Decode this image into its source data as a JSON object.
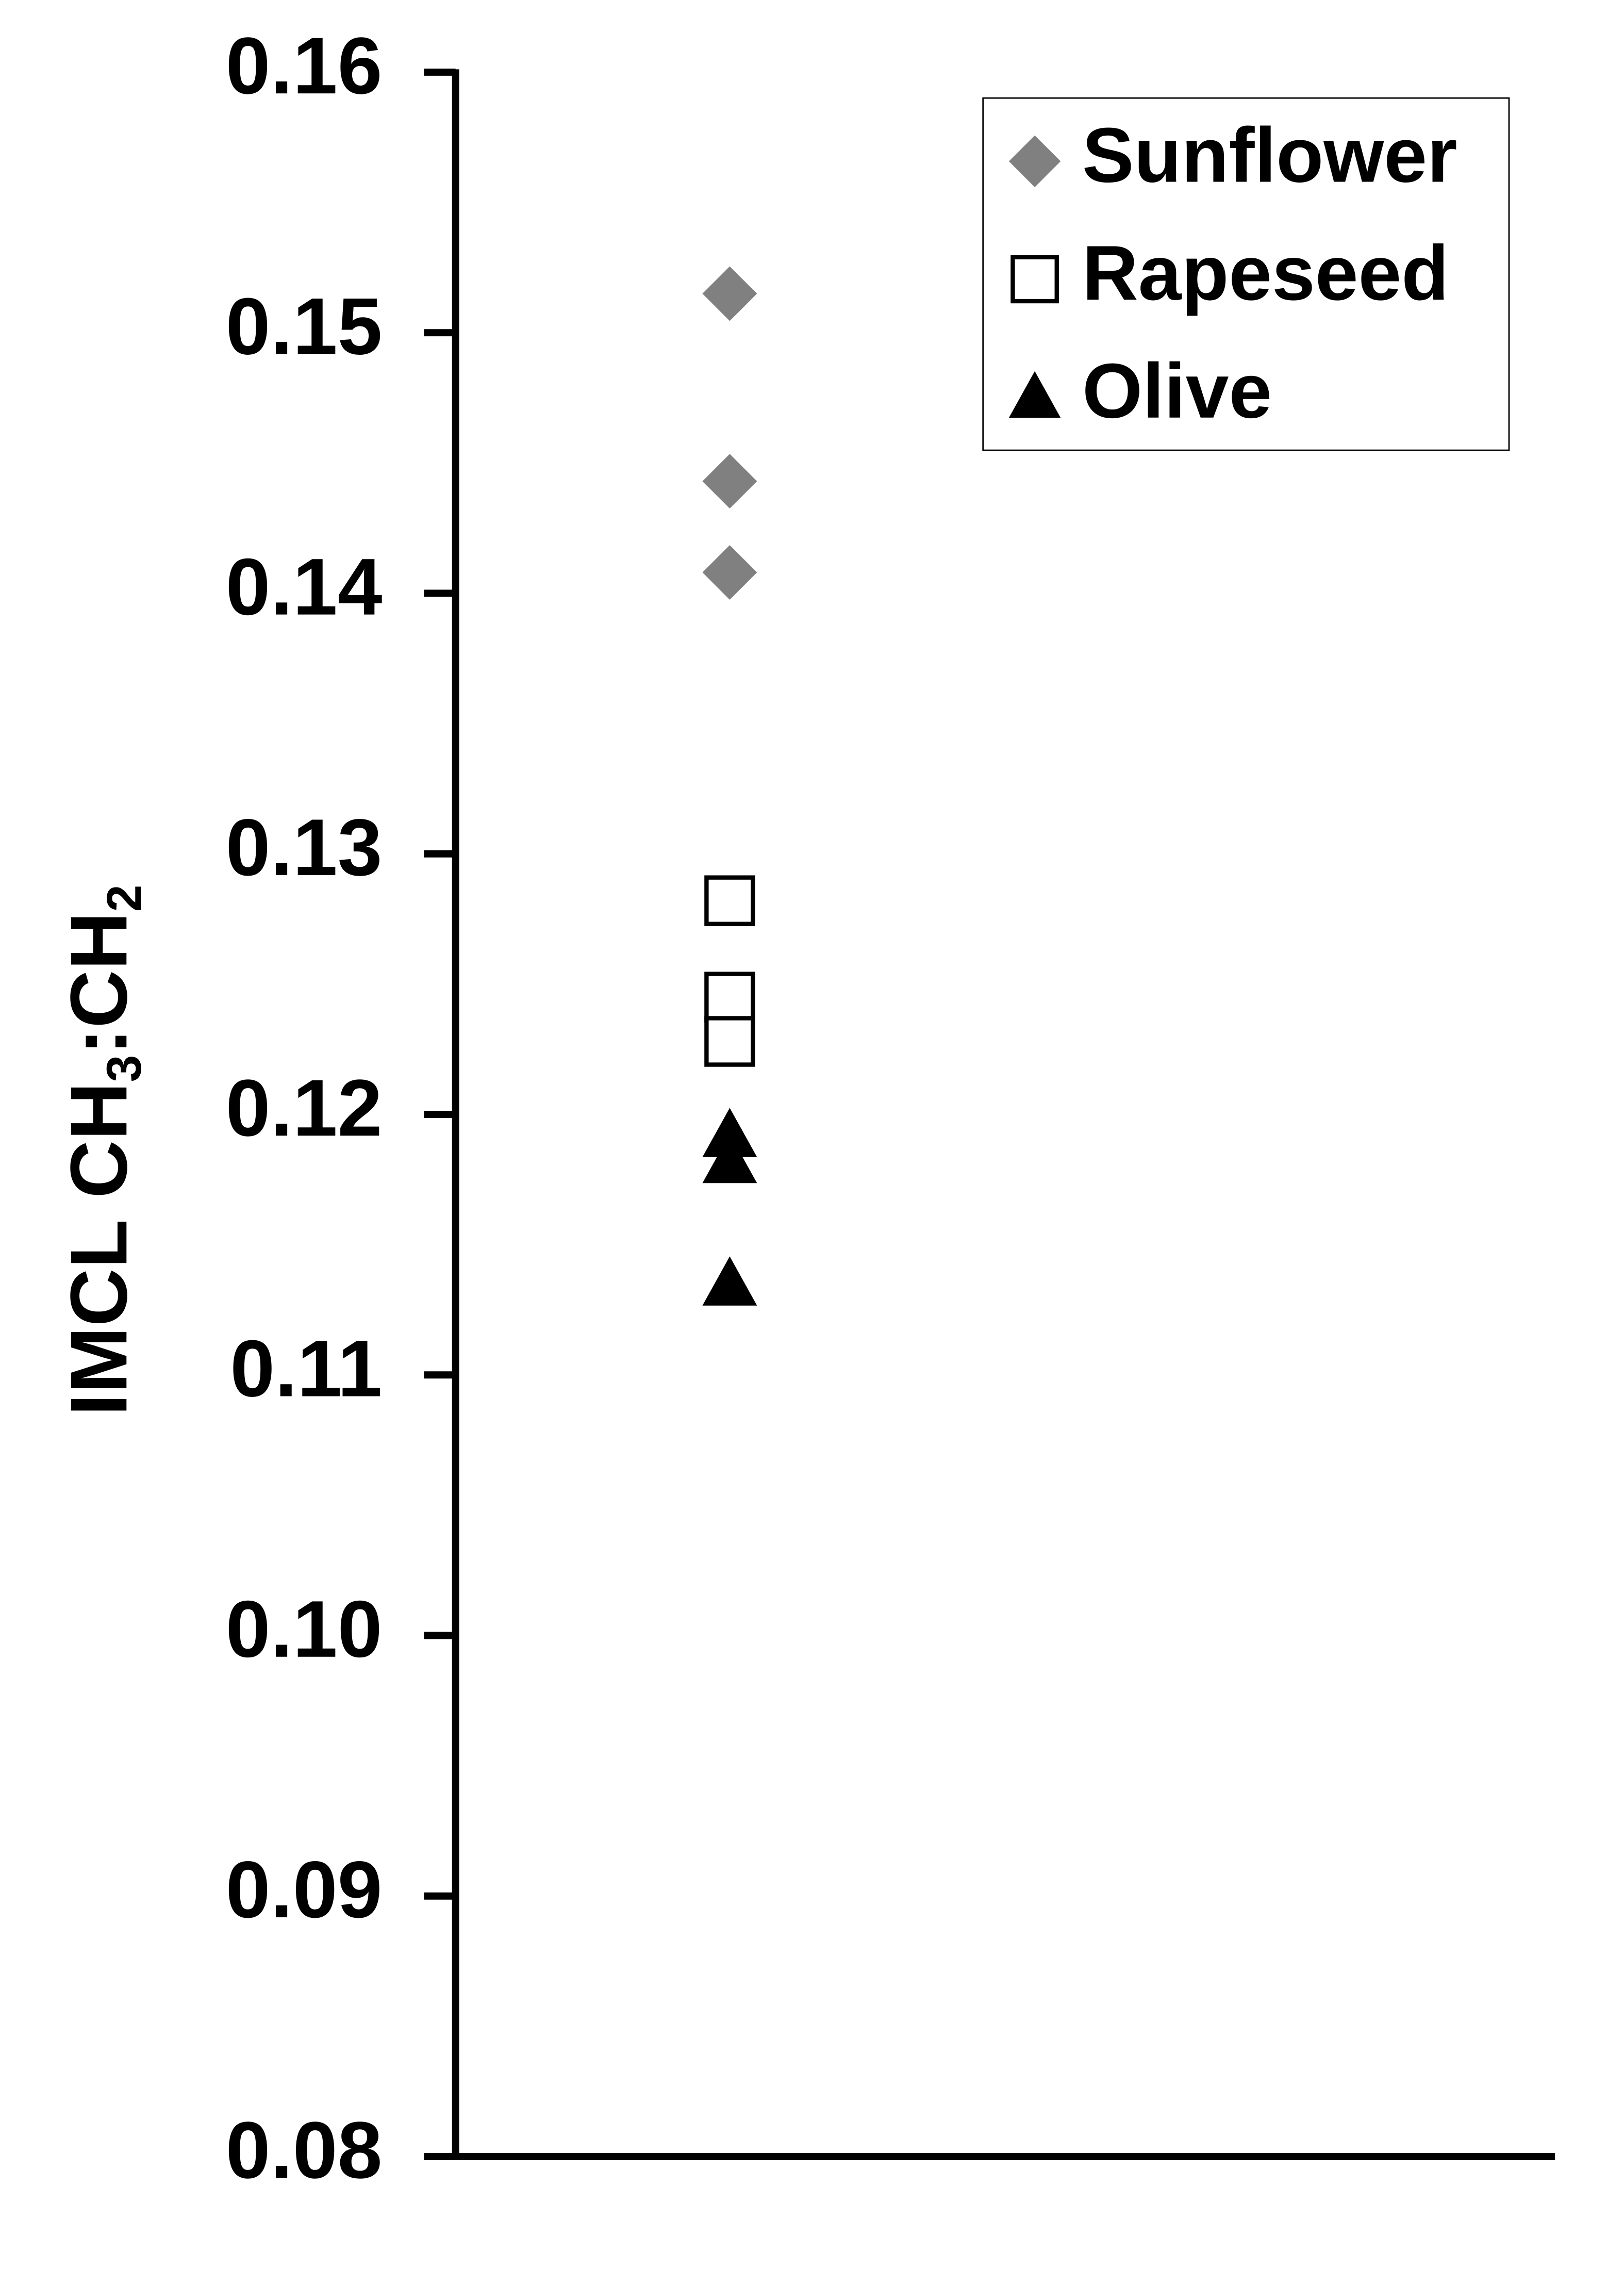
{
  "chart_data": {
    "type": "strip",
    "ylabel": [
      "IMCL CH",
      "3",
      ":CH",
      "2"
    ],
    "ylim": [
      0.08,
      0.16
    ],
    "yticks": [
      0.08,
      0.09,
      {
        "value": 0.1,
        "label": "0.10"
      },
      0.11,
      0.12,
      0.13,
      0.14,
      0.15,
      0.16
    ],
    "legend": "upper right",
    "series": [
      {
        "name": "Sunflower",
        "marker": "diamond",
        "color": "#808080",
        "values": [
          0.1515,
          0.1443,
          0.1408
        ]
      },
      {
        "name": "Rapeseed",
        "marker": "square",
        "color": "#000000",
        "values": [
          0.1282,
          0.1245,
          0.1228
        ]
      },
      {
        "name": "Olive",
        "marker": "triangle",
        "color": "#000000",
        "values": [
          0.1192,
          0.1182,
          0.1135
        ]
      }
    ]
  }
}
